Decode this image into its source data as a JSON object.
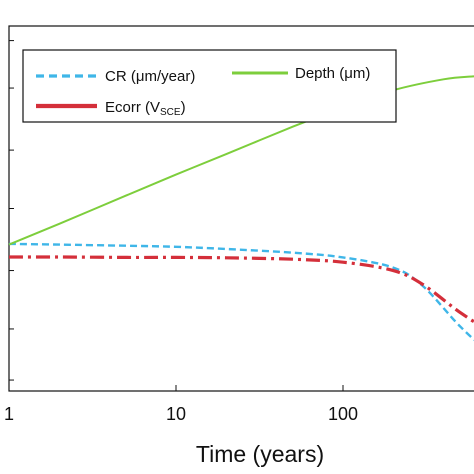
{
  "chart_data": {
    "type": "line",
    "xlabel": "Time (years)",
    "x_scale": "log",
    "xlim": [
      1,
      1000
    ],
    "x_ticks": [
      "1",
      "10",
      "100"
    ],
    "x_tick_values": [
      1,
      10,
      100
    ],
    "grid": false,
    "legend": {
      "placement": "top",
      "entries": [
        {
          "series": "cr",
          "text": "CR (μm/year)"
        },
        {
          "series": "depth",
          "text": "Depth (μm)"
        },
        {
          "series": "ecorr",
          "text": "Ecorr (V",
          "subscript": "SCE",
          "suffix": ")"
        }
      ]
    },
    "series": [
      {
        "id": "cr",
        "name": "CR (μm/year)",
        "color": "#3fb6e8",
        "dash": "dashed",
        "x": [
          1,
          2,
          5,
          10,
          20,
          50,
          100,
          200,
          300,
          500,
          700,
          1000
        ],
        "y": [
          0.403,
          0.401,
          0.398,
          0.395,
          0.389,
          0.379,
          0.366,
          0.338,
          0.288,
          0.178,
          0.121,
          0.095
        ]
      },
      {
        "id": "depth",
        "name": "Depth (μm)",
        "color": "#7dce3c",
        "dash": "solid",
        "x": [
          1,
          2,
          5,
          10,
          20,
          50,
          100,
          200,
          400,
          600,
          800,
          1000
        ],
        "y": [
          0.401,
          0.458,
          0.535,
          0.593,
          0.649,
          0.724,
          0.777,
          0.824,
          0.854,
          0.862,
          0.865,
          0.866
        ]
      },
      {
        "id": "ecorr",
        "name": "Ecorr (VSCE)",
        "color": "#d42f3a",
        "dash": "dashdot",
        "x": [
          1,
          2,
          5,
          10,
          20,
          50,
          100,
          200,
          300,
          500,
          700,
          1000
        ],
        "y": [
          0.367,
          0.367,
          0.366,
          0.366,
          0.365,
          0.361,
          0.353,
          0.33,
          0.292,
          0.216,
          0.176,
          0.161
        ]
      }
    ]
  }
}
